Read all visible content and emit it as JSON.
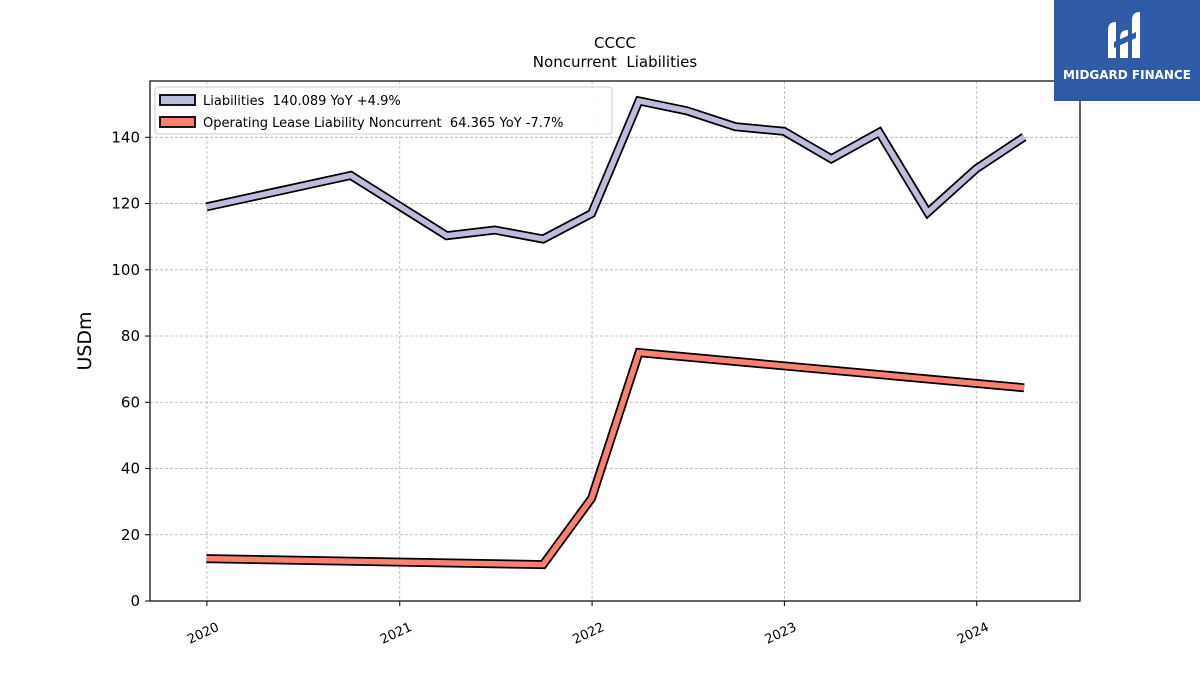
{
  "brand": {
    "name": "MIDGARD FINANCE",
    "logo_icon": "midgard-logo-mark",
    "background_color": "#2f5aa8"
  },
  "chart_data": {
    "type": "line",
    "title": "CCCC",
    "subtitle": "Noncurrent  Liabilities",
    "ylabel": "USDm",
    "xlabel": "",
    "ylim": [
      0,
      157
    ],
    "yticks": [
      0,
      20,
      40,
      60,
      80,
      100,
      120,
      140
    ],
    "xticks": [
      "2020",
      "2021",
      "2022",
      "2023",
      "2024"
    ],
    "xlim": [
      "2019-09-15",
      "2024-07-15"
    ],
    "grid": true,
    "legend_position": "top-left",
    "series": [
      {
        "name": "Liabilities",
        "legend_label": "Liabilities  140.089 YoY +4.9%",
        "color": "#bcbddc",
        "points": [
          [
            "2019-12-31",
            119.0
          ],
          [
            "2020-09-30",
            128.5
          ],
          [
            "2021-03-31",
            110.3
          ],
          [
            "2021-06-30",
            112.0
          ],
          [
            "2021-09-30",
            109.3
          ],
          [
            "2021-12-31",
            117.0
          ],
          [
            "2022-03-31",
            151.0
          ],
          [
            "2022-06-30",
            148.0
          ],
          [
            "2022-09-30",
            143.2
          ],
          [
            "2022-12-31",
            141.8
          ],
          [
            "2023-03-31",
            133.5
          ],
          [
            "2023-06-30",
            141.5
          ],
          [
            "2023-09-30",
            117.3
          ],
          [
            "2023-12-31",
            130.5
          ],
          [
            "2024-03-31",
            140.089
          ]
        ]
      },
      {
        "name": "Operating Lease Liability Noncurrent",
        "legend_label": "Operating Lease Liability Noncurrent  64.365 YoY -7.7%",
        "color": "#fa8072",
        "points": [
          [
            "2019-12-31",
            12.8
          ],
          [
            "2021-09-30",
            11.0
          ],
          [
            "2021-12-31",
            31.0
          ],
          [
            "2022-03-31",
            75.0
          ],
          [
            "2024-03-31",
            64.365
          ]
        ]
      }
    ]
  }
}
